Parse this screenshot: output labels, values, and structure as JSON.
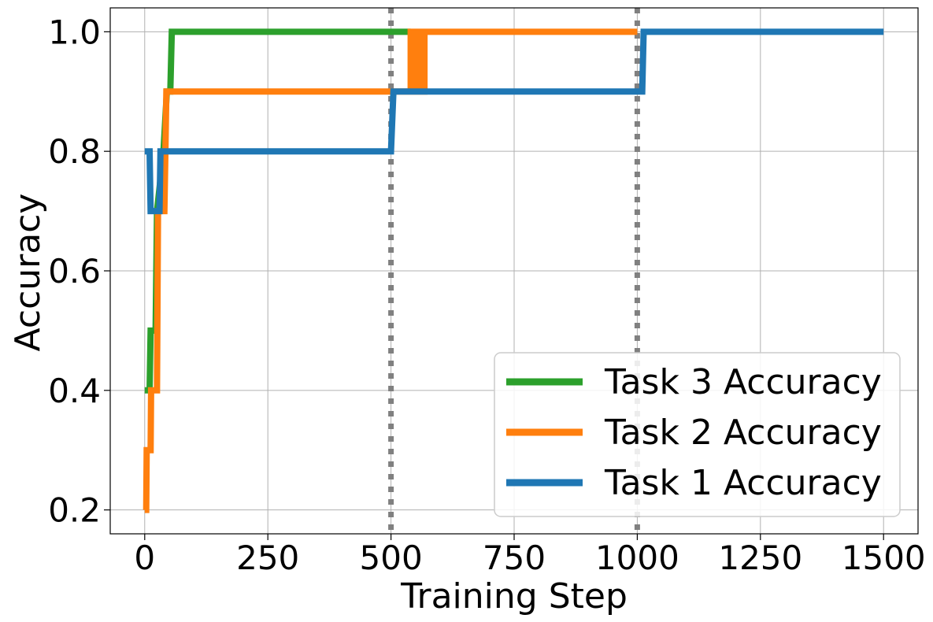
{
  "chart_data": {
    "type": "line",
    "title": "",
    "xlabel": "Training Step",
    "ylabel": "Accuracy",
    "xlim": [
      -70,
      1570
    ],
    "ylim": [
      0.16,
      1.04
    ],
    "xticks": [
      0,
      250,
      500,
      750,
      1000,
      1250,
      1500
    ],
    "xtick_labels": [
      "0",
      "250",
      "500",
      "750",
      "1000",
      "1250",
      "1500"
    ],
    "yticks": [
      0.2,
      0.4,
      0.6,
      0.8,
      1.0
    ],
    "ytick_labels": [
      "0.2",
      "0.4",
      "0.6",
      "0.8",
      "1.0"
    ],
    "grid": true,
    "legend_position": "lower-right",
    "task_boundaries": [
      500,
      1000
    ],
    "boundary_color": "#808080",
    "series": [
      {
        "name": "Task 3 Accuracy",
        "color": "#2ca02c",
        "points": [
          [
            0,
            0.4
          ],
          [
            10,
            0.4
          ],
          [
            12,
            0.5
          ],
          [
            22,
            0.5
          ],
          [
            25,
            0.7
          ],
          [
            38,
            0.8
          ],
          [
            45,
            0.9
          ],
          [
            52,
            0.9
          ],
          [
            55,
            1.0
          ],
          [
            540,
            1.0
          ]
        ]
      },
      {
        "name": "Task 2 Accuracy",
        "color": "#ff7f0e",
        "points": [
          [
            0,
            0.2
          ],
          [
            3,
            0.2
          ],
          [
            4,
            0.3
          ],
          [
            12,
            0.3
          ],
          [
            13,
            0.4
          ],
          [
            25,
            0.4
          ],
          [
            27,
            0.7
          ],
          [
            40,
            0.7
          ],
          [
            42,
            0.8
          ],
          [
            44,
            0.9
          ],
          [
            500,
            0.9
          ],
          [
            540,
            0.9
          ],
          [
            540,
            1.0
          ],
          [
            548,
            1.0
          ],
          [
            548,
            0.9
          ],
          [
            556,
            0.9
          ],
          [
            556,
            1.0
          ],
          [
            562,
            1.0
          ],
          [
            562,
            0.9
          ],
          [
            568,
            0.9
          ],
          [
            568,
            1.0
          ],
          [
            1000,
            1.0
          ]
        ]
      },
      {
        "name": "Task 1 Accuracy",
        "color": "#1f77b4",
        "points": [
          [
            0,
            0.8
          ],
          [
            10,
            0.8
          ],
          [
            12,
            0.7
          ],
          [
            30,
            0.7
          ],
          [
            32,
            0.8
          ],
          [
            500,
            0.8
          ],
          [
            505,
            0.9
          ],
          [
            1010,
            0.9
          ],
          [
            1013,
            1.0
          ],
          [
            1500,
            1.0
          ]
        ]
      }
    ]
  }
}
